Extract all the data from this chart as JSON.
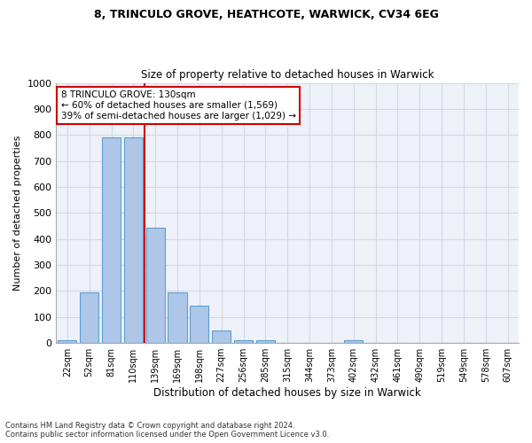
{
  "title1": "8, TRINCULO GROVE, HEATHCOTE, WARWICK, CV34 6EG",
  "title2": "Size of property relative to detached houses in Warwick",
  "xlabel": "Distribution of detached houses by size in Warwick",
  "ylabel": "Number of detached properties",
  "footer1": "Contains HM Land Registry data © Crown copyright and database right 2024.",
  "footer2": "Contains public sector information licensed under the Open Government Licence v3.0.",
  "bar_labels": [
    "22sqm",
    "52sqm",
    "81sqm",
    "110sqm",
    "139sqm",
    "169sqm",
    "198sqm",
    "227sqm",
    "256sqm",
    "285sqm",
    "315sqm",
    "344sqm",
    "373sqm",
    "402sqm",
    "432sqm",
    "461sqm",
    "490sqm",
    "519sqm",
    "549sqm",
    "578sqm",
    "607sqm"
  ],
  "bar_values": [
    10,
    193,
    790,
    790,
    443,
    193,
    145,
    48,
    10,
    10,
    0,
    0,
    0,
    10,
    0,
    0,
    0,
    0,
    0,
    0,
    0
  ],
  "bar_color": "#aec6e8",
  "bar_edge_color": "#5a9fd4",
  "grid_color": "#d0d8e8",
  "background_color": "#eef2f8",
  "vline_x": 3.5,
  "vline_color": "#cc0000",
  "annotation_text": "8 TRINCULO GROVE: 130sqm\n← 60% of detached houses are smaller (1,569)\n39% of semi-detached houses are larger (1,029) →",
  "annotation_box_color": "#ffffff",
  "annotation_box_edge": "#cc0000",
  "ylim": [
    0,
    1000
  ],
  "yticks": [
    0,
    100,
    200,
    300,
    400,
    500,
    600,
    700,
    800,
    900,
    1000
  ]
}
